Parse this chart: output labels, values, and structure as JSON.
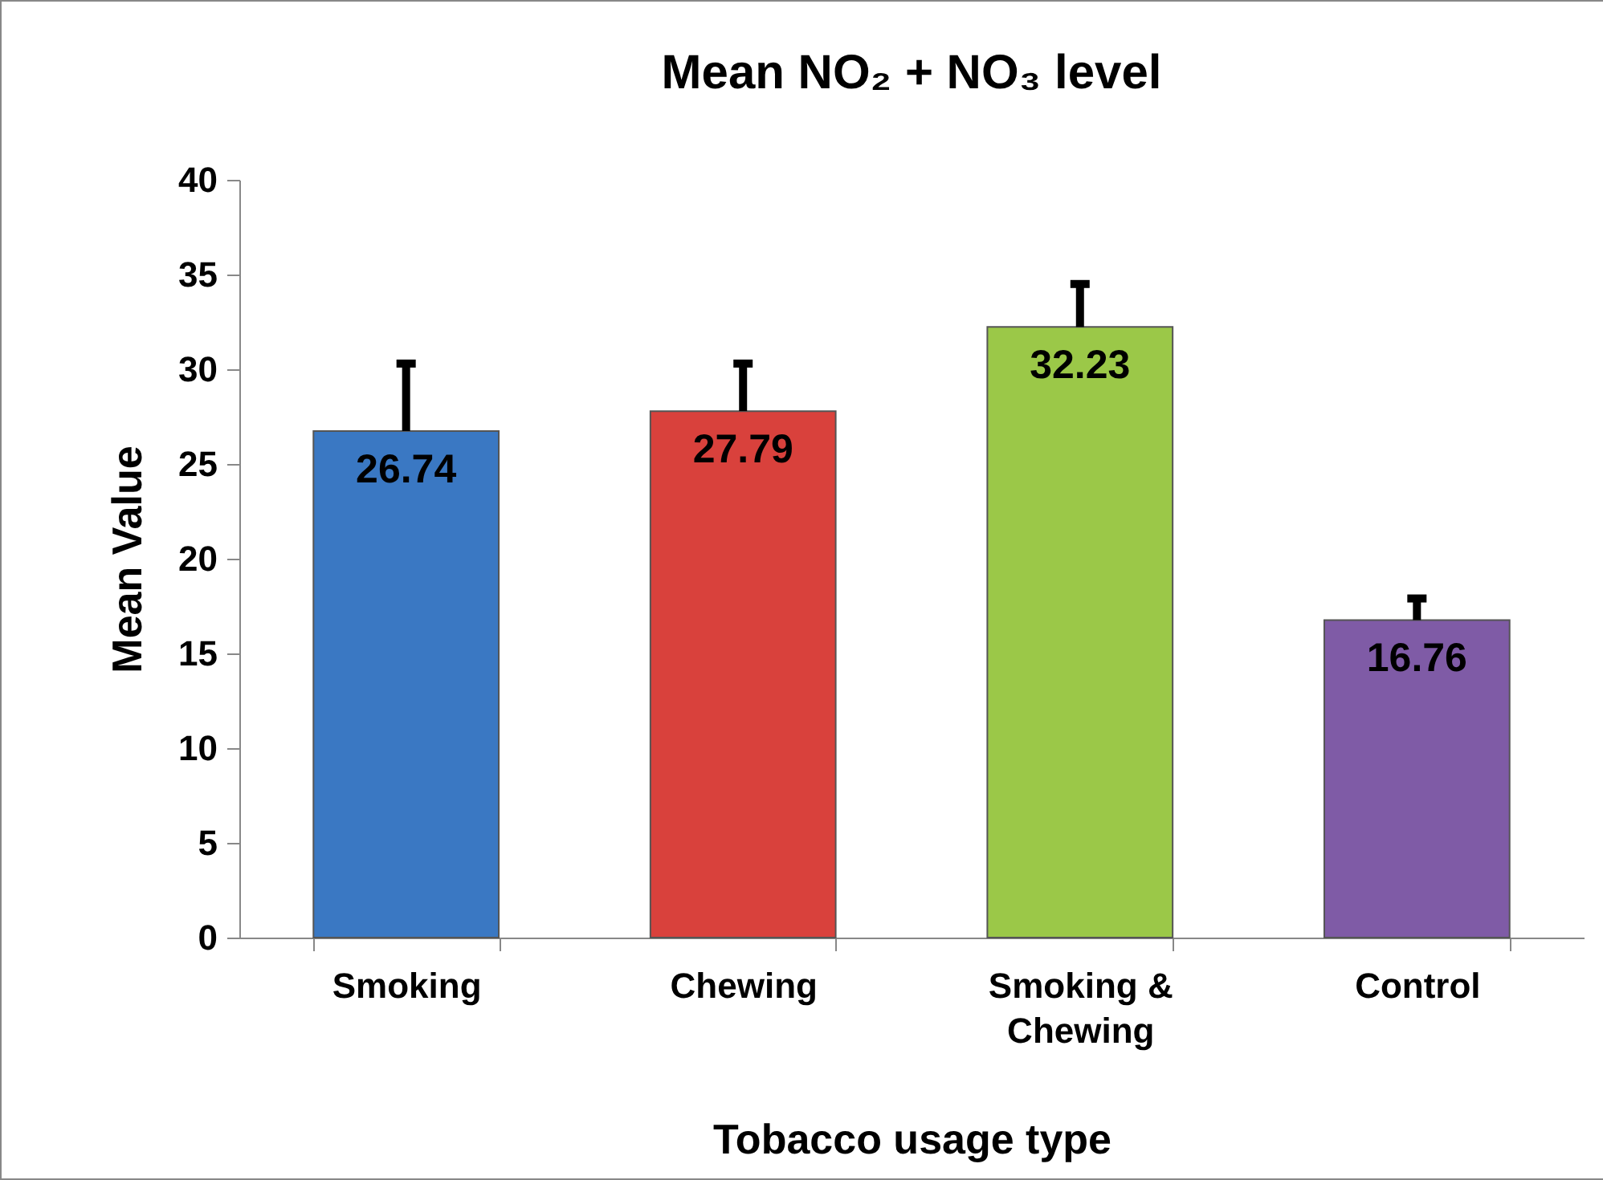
{
  "chart_data": {
    "type": "bar",
    "title": "Mean NO₂ + NO₃ level",
    "xlabel": "Tobacco usage type",
    "ylabel": "Mean Value",
    "categories": [
      "Smoking",
      "Chewing",
      "Smoking & Chewing",
      "Control"
    ],
    "values": [
      26.74,
      27.79,
      32.23,
      16.76
    ],
    "colors": [
      "#3a78c3",
      "#d9413c",
      "#9bc848",
      "#7f5ba6"
    ],
    "errors": [
      [
        26.74,
        30.3
      ],
      [
        27.79,
        30.3
      ],
      [
        32.23,
        34.5
      ],
      [
        16.76,
        17.9
      ]
    ],
    "ylim": [
      0,
      40
    ],
    "yticks": [
      0,
      5,
      10,
      15,
      20,
      25,
      30,
      35,
      40
    ],
    "grid": false,
    "legend": false,
    "data_labels": true
  }
}
